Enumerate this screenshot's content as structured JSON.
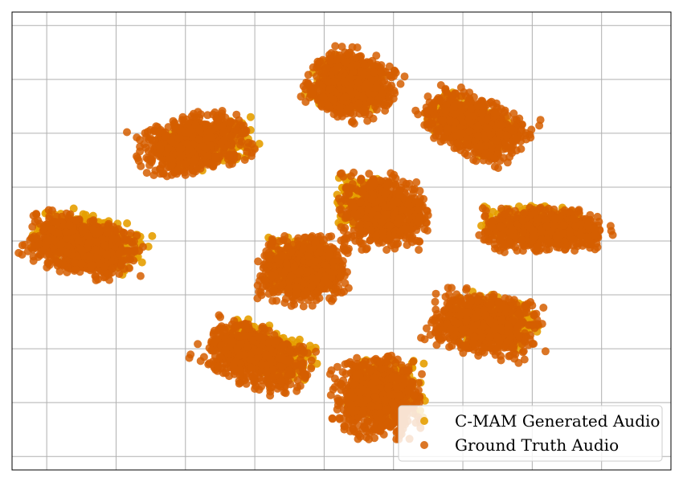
{
  "chart_data": {
    "type": "scatter",
    "title": "",
    "xlabel": "",
    "ylabel": "",
    "xlim": [
      -95,
      95
    ],
    "ylim": [
      -85,
      85
    ],
    "x_ticks": [
      -85,
      -65,
      -45,
      -25,
      -5,
      15,
      35,
      55,
      75
    ],
    "y_ticks": [
      -80,
      -60,
      -40,
      -20,
      0,
      20,
      40,
      60,
      80
    ],
    "grid": true,
    "legend_position": "bottom-right",
    "series": [
      {
        "name": "C-MAM Generated Audio",
        "color": "#e69f00",
        "clusters": [
          {
            "cx": -72,
            "cy": 0,
            "sx": 14,
            "sy": 8,
            "angle": -20,
            "n": 360
          },
          {
            "cx": -38,
            "cy": 36,
            "sx": 12,
            "sy": 7,
            "angle": 10,
            "n": 320
          },
          {
            "cx": -21,
            "cy": -41,
            "sx": 12,
            "sy": 7,
            "angle": -30,
            "n": 320
          },
          {
            "cx": 2,
            "cy": 58,
            "sx": 9,
            "sy": 8,
            "angle": -20,
            "n": 300
          },
          {
            "cx": 36,
            "cy": 44,
            "sx": 11,
            "sy": 7,
            "angle": -35,
            "n": 300
          },
          {
            "cx": -11,
            "cy": -8,
            "sx": 9,
            "sy": 8,
            "angle": 0,
            "n": 300
          },
          {
            "cx": 8,
            "cy": 14,
            "sx": 8,
            "sy": 8,
            "angle": 0,
            "n": 280
          },
          {
            "cx": 56,
            "cy": 7,
            "sx": 13,
            "sy": 5,
            "angle": 0,
            "n": 300
          },
          {
            "cx": 44,
            "cy": -30,
            "sx": 11,
            "sy": 8,
            "angle": -15,
            "n": 300
          },
          {
            "cx": 13,
            "cy": -56,
            "sx": 10,
            "sy": 10,
            "angle": 0,
            "n": 300
          }
        ]
      },
      {
        "name": "Ground Truth Audio",
        "color": "#d55e00",
        "clusters": [
          {
            "cx": -75,
            "cy": -2,
            "sx": 14,
            "sy": 9,
            "angle": -20,
            "n": 720
          },
          {
            "cx": -43,
            "cy": 36,
            "sx": 14,
            "sy": 9,
            "angle": 20,
            "n": 620
          },
          {
            "cx": -25,
            "cy": -43,
            "sx": 14,
            "sy": 9,
            "angle": -30,
            "n": 620
          },
          {
            "cx": 3,
            "cy": 58,
            "sx": 11,
            "sy": 11,
            "angle": -30,
            "n": 620
          },
          {
            "cx": 38,
            "cy": 43,
            "sx": 14,
            "sy": 9,
            "angle": -35,
            "n": 640
          },
          {
            "cx": -11,
            "cy": -11,
            "sx": 11,
            "sy": 11,
            "angle": 0,
            "n": 620
          },
          {
            "cx": 12,
            "cy": 11,
            "sx": 11,
            "sy": 12,
            "angle": 0,
            "n": 620
          },
          {
            "cx": 59,
            "cy": 4,
            "sx": 16,
            "sy": 7,
            "angle": 0,
            "n": 620
          },
          {
            "cx": 41,
            "cy": -31,
            "sx": 14,
            "sy": 10,
            "angle": -15,
            "n": 620
          },
          {
            "cx": 10,
            "cy": -58,
            "sx": 11,
            "sy": 13,
            "angle": 0,
            "n": 620
          }
        ]
      }
    ]
  }
}
